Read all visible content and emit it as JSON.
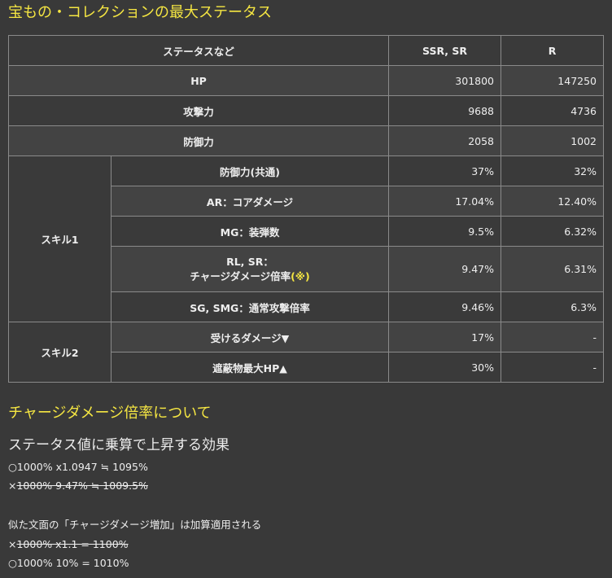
{
  "title": "宝もの・コレクションの最大ステータス",
  "table": {
    "headers": [
      "ステータスなど",
      "SSR, SR",
      "R"
    ],
    "rows_basic": [
      {
        "label": "HP",
        "ssr_sr": "301800",
        "r": "147250"
      },
      {
        "label": "攻撃力",
        "ssr_sr": "9688",
        "r": "4736"
      },
      {
        "label": "防御力",
        "ssr_sr": "2058",
        "r": "1002"
      }
    ],
    "skill1": {
      "group": "スキル1",
      "rows": [
        {
          "label": "防御力(共通)",
          "ssr_sr": "37%",
          "r": "32%"
        },
        {
          "label": "AR：コアダメージ",
          "ssr_sr": "17.04%",
          "r": "12.40%"
        },
        {
          "label": "MG：装弾数",
          "ssr_sr": "9.5%",
          "r": "6.32%"
        },
        {
          "label_line1": "RL, SR：",
          "label_line2": "チャージダメージ倍率",
          "label_mark": "(※)",
          "ssr_sr": "9.47%",
          "r": "6.31%"
        },
        {
          "label": "SG, SMG：通常攻撃倍率",
          "ssr_sr": "9.46%",
          "r": "6.3%"
        }
      ]
    },
    "skill2": {
      "group": "スキル2",
      "rows": [
        {
          "label": "受けるダメージ▼",
          "ssr_sr": "17%",
          "r": "-"
        },
        {
          "label": "遮蔽物最大HP▲",
          "ssr_sr": "30%",
          "r": "-"
        }
      ]
    }
  },
  "charge_section": {
    "heading": "チャージダメージ倍率について",
    "subheading": "ステータス値に乗算で上昇する効果",
    "line1": "○1000% x1.0947 ≒ 1095%",
    "line2_mark": "×",
    "line2_struck": "1000% 9.47% ≒ 1009.5%",
    "line3": "似た文面の「チャージダメージ増加」は加算適用される",
    "line4_mark": "×",
    "line4_struck": "1000% x1.1 = 1100%",
    "line5": "○1000% 10% = 1010%"
  },
  "colors": {
    "background": "#393939",
    "heading": "#f5e642",
    "border": "#8a8a8a",
    "text": "#eeeeee"
  }
}
